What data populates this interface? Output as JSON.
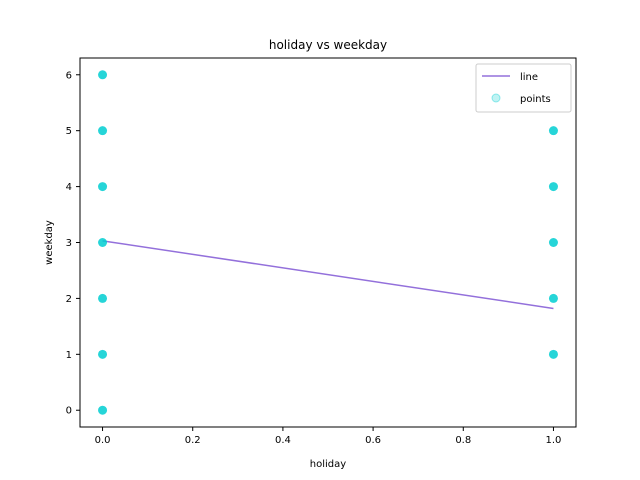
{
  "chart_data": {
    "type": "scatter",
    "title": "holiday vs weekday",
    "xlabel": "holiday",
    "ylabel": "weekday",
    "xlim": [
      -0.05,
      1.05
    ],
    "ylim": [
      -0.3,
      6.3
    ],
    "xticks": [
      0.0,
      0.2,
      0.4,
      0.6,
      0.8,
      1.0
    ],
    "xtick_labels": [
      "0.0",
      "0.2",
      "0.4",
      "0.6",
      "0.8",
      "1.0"
    ],
    "yticks": [
      0,
      1,
      2,
      3,
      4,
      5,
      6
    ],
    "ytick_labels": [
      "0",
      "1",
      "2",
      "3",
      "4",
      "5",
      "6"
    ],
    "grid": false,
    "legend_position": "top-right",
    "series": [
      {
        "name": "line",
        "kind": "line",
        "color": "#9370db",
        "x": [
          0,
          1
        ],
        "y": [
          3.03,
          1.82
        ]
      },
      {
        "name": "points",
        "kind": "scatter",
        "color": "#00ced1",
        "x": [
          0,
          0,
          0,
          0,
          0,
          0,
          0,
          1,
          1,
          1,
          1,
          1
        ],
        "y": [
          0,
          1,
          2,
          3,
          4,
          5,
          6,
          1,
          2,
          3,
          4,
          5
        ]
      }
    ]
  }
}
